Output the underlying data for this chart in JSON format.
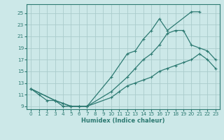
{
  "title": "",
  "xlabel": "Humidex (Indice chaleur)",
  "bg_color": "#cce8e8",
  "grid_color": "#aacccc",
  "line_color": "#2d7a72",
  "xlim": [
    -0.5,
    23.5
  ],
  "ylim": [
    8.5,
    26.5
  ],
  "xticks": [
    0,
    1,
    2,
    3,
    4,
    5,
    6,
    7,
    8,
    9,
    10,
    11,
    12,
    13,
    14,
    15,
    16,
    17,
    18,
    19,
    20,
    21,
    22,
    23
  ],
  "yticks": [
    9,
    11,
    13,
    15,
    17,
    19,
    21,
    23,
    25
  ],
  "curves": [
    {
      "x": [
        0,
        1,
        2,
        3,
        4,
        5,
        6,
        7,
        10,
        12,
        13,
        14,
        15,
        16,
        17,
        20,
        21
      ],
      "y": [
        12,
        11,
        10,
        10,
        9,
        9,
        9,
        9,
        14,
        18,
        18.5,
        20.5,
        22,
        24.0,
        22,
        25.2,
        25.2
      ]
    },
    {
      "x": [
        0,
        3,
        4,
        5,
        6,
        7,
        10,
        12,
        13,
        14,
        15,
        16,
        17,
        18,
        19,
        20,
        21,
        22,
        23
      ],
      "y": [
        12,
        10,
        9.5,
        9,
        9,
        9,
        11.5,
        14.0,
        15.5,
        17.0,
        18.0,
        19.5,
        21.5,
        22.0,
        22.0,
        19.5,
        19.0,
        18.5,
        17.0
      ]
    },
    {
      "x": [
        0,
        3,
        4,
        5,
        6,
        7,
        10,
        11,
        12,
        13,
        14,
        15,
        16,
        17,
        18,
        19,
        20,
        21,
        22,
        23
      ],
      "y": [
        12,
        10,
        9.5,
        9,
        9,
        9,
        10.5,
        11.5,
        12.5,
        13.0,
        13.5,
        14.0,
        15.0,
        15.5,
        16.0,
        16.5,
        17.0,
        18.0,
        17.0,
        15.5
      ]
    }
  ]
}
